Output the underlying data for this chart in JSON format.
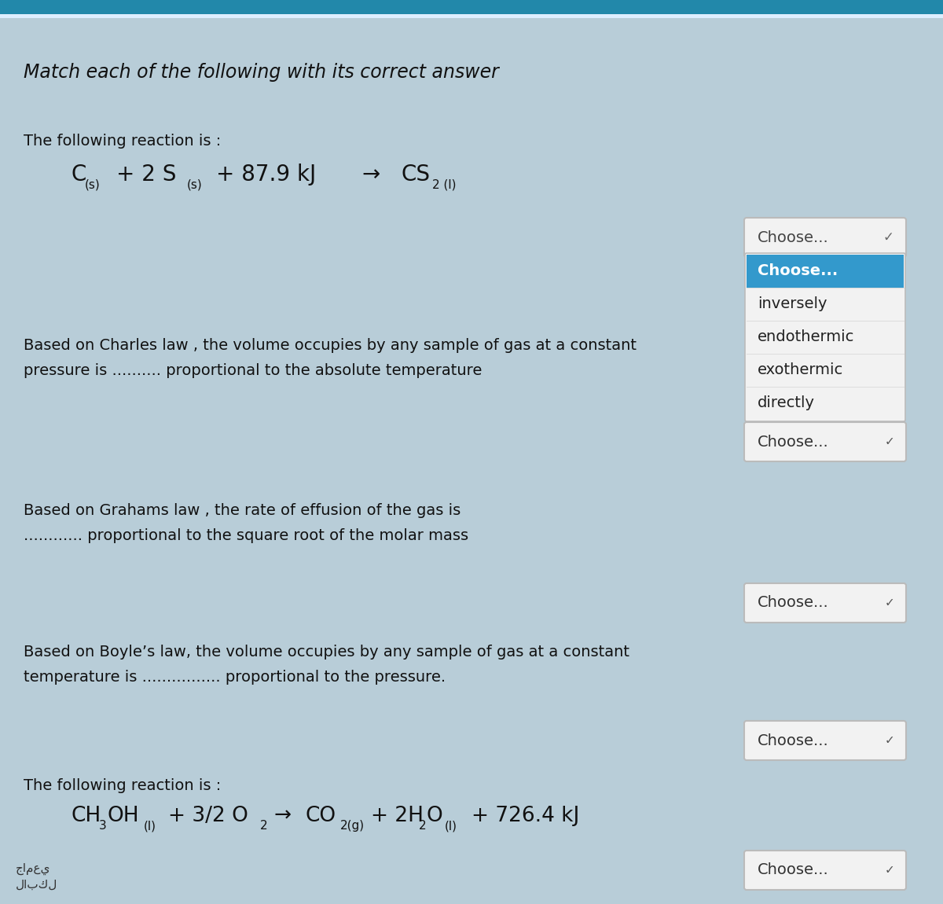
{
  "title": "Match each of the following with its correct answer",
  "bg_color": "#b8cdd8",
  "panel_color": "#c8d8e4",
  "text_color": "#111111",
  "q1_label": "The following reaction is :",
  "q2_label1": "Based on Charles law , the volume occupies by any sample of gas at a constant",
  "q2_label2": "pressure is .......... proportional to the absolute temperature",
  "q3_label1": "Based on Grahams law , the rate of effusion of the gas is",
  "q3_label2": "............ proportional to the square root of the molar mass",
  "q4_label1": "Based on Boyle’s law, the volume occupies by any sample of gas at a constant",
  "q4_label2": "temperature is ................ proportional to the pressure.",
  "q5_label": "The following reaction is :",
  "dropdown_bg": "#f2f2f2",
  "dropdown_border": "#bbbbbb",
  "dropdown_selected_bg": "#3399cc",
  "dropdown_options": [
    "Choose...",
    "inversely",
    "endothermic",
    "exothermic",
    "directly"
  ],
  "choose_label": "Choose...",
  "chevron": "✓"
}
